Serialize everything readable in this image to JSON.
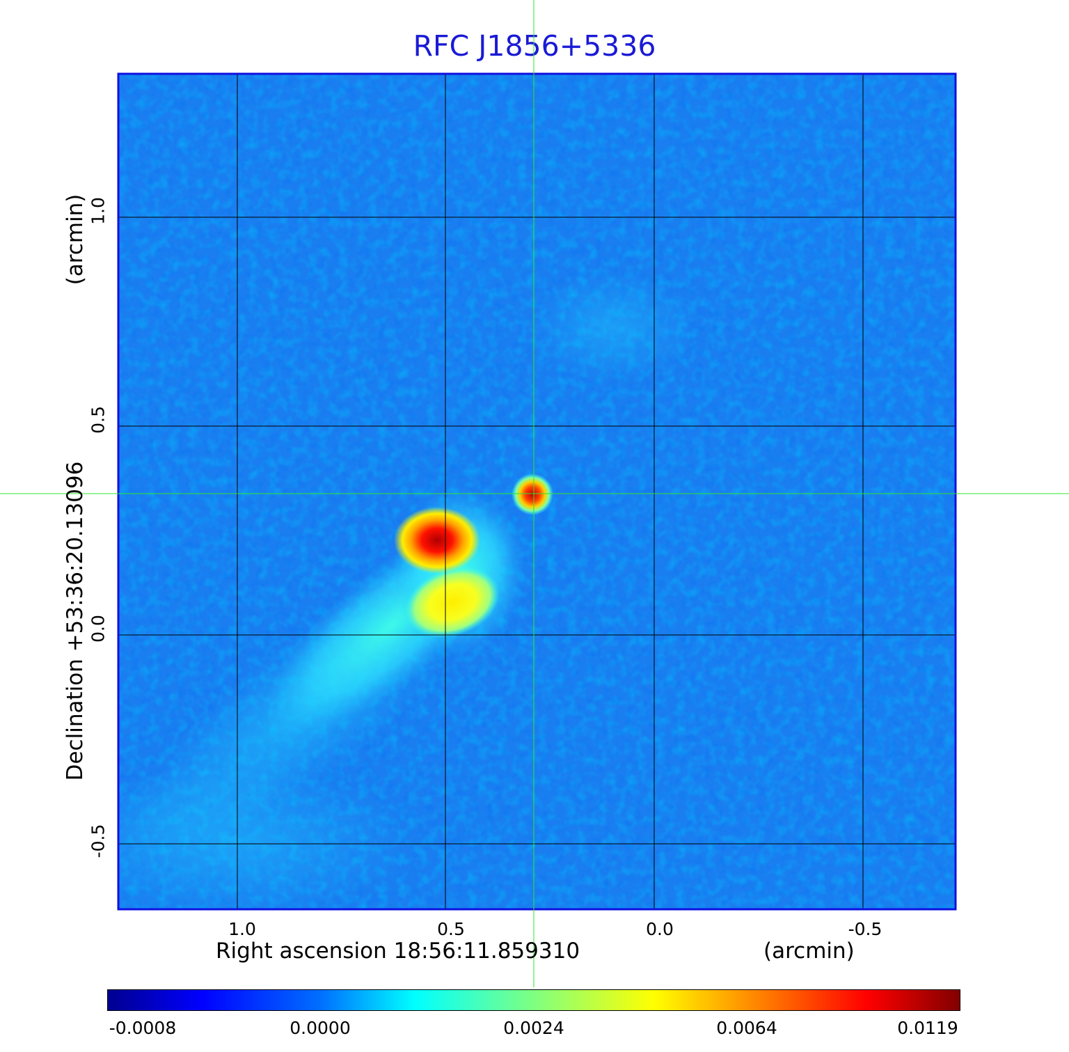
{
  "title": "RFC J1856+5336",
  "x_axis": {
    "label": "Right ascension  18:56:11.859310",
    "unit": "(arcmin)",
    "ticks": [
      "1.0",
      "0.5",
      "0.0",
      "-0.5"
    ]
  },
  "y_axis": {
    "label": "Declination  +53:36:20.13096",
    "unit": "(arcmin)",
    "ticks": [
      "1.0",
      "0.5",
      "0.0",
      "-0.5"
    ]
  },
  "colorbar": {
    "colormap": "jet",
    "ticks": [
      "-0.0008",
      "0.0000",
      "0.0024",
      "0.0064",
      "0.0119"
    ]
  },
  "colors": {
    "title": "#1a1ad6",
    "frame": "#1010e0",
    "crosshair": "#2ee82e",
    "grid": "#000000"
  }
}
